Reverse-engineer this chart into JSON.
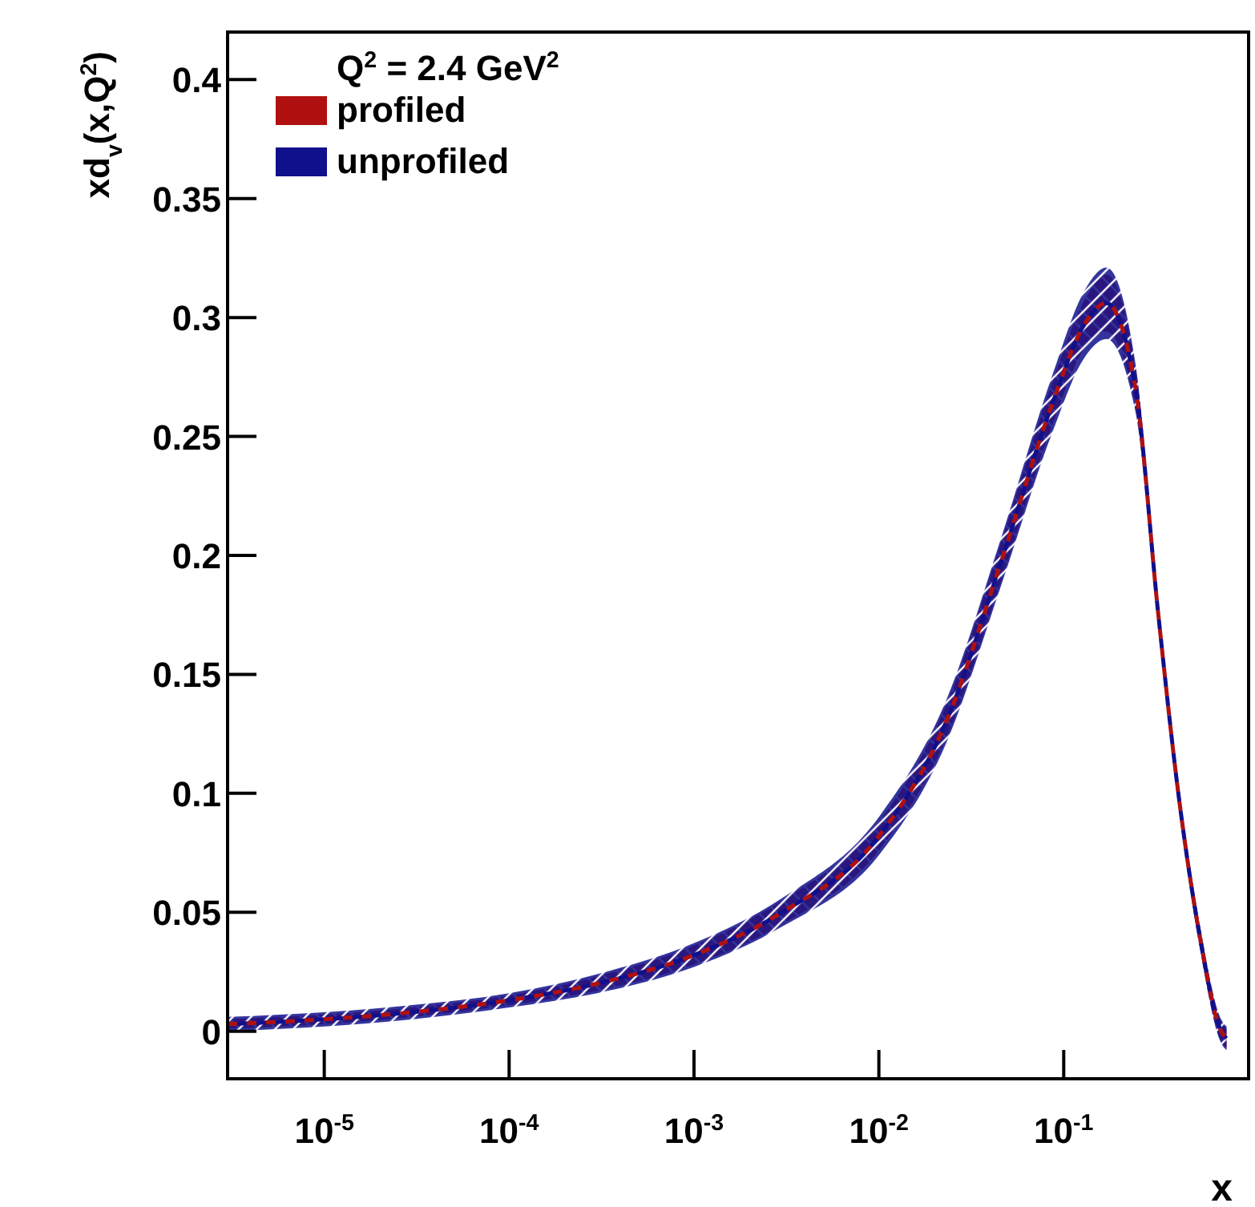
{
  "chart_data": {
    "type": "line",
    "xlabel": "x",
    "ylabel": "xd$_{v}$(x,Q$^{2}$)",
    "annotations": [
      "Q$^{2}$ = 2.4 GeV$^{2}$"
    ],
    "log": "x",
    "legend": "top left",
    "grid": false,
    "line_style": "dashed",
    "x": [
      3e-06,
      1e-05,
      3e-05,
      0.0001,
      0.0003,
      0.001,
      0.003,
      0.01,
      0.0234,
      0.0457,
      0.087,
      0.129,
      0.17,
      0.245,
      0.325,
      0.42,
      0.55,
      0.71,
      0.76
    ],
    "xlim": [
      3e-06,
      1
    ],
    "ylim": [
      -0.02,
      0.42
    ],
    "xticks": [
      {
        "value": 1e-05,
        "label": "10$^{-5}$"
      },
      {
        "value": 0.0001,
        "label": "10$^{-4}$"
      },
      {
        "value": 0.001,
        "label": "10$^{-3}$"
      },
      {
        "value": 0.01,
        "label": "10$^{-2}$"
      },
      {
        "value": 0.1,
        "label": "10$^{-1}$"
      }
    ],
    "yticks": [
      0,
      0.05,
      0.1,
      0.15,
      0.2,
      0.25,
      0.3,
      0.35,
      0.4
    ],
    "series": [
      {
        "name": "profiled",
        "color": "#b01010",
        "values": [
          0.003,
          0.005,
          0.008,
          0.013,
          0.02,
          0.032,
          0.05,
          0.082,
          0.131,
          0.197,
          0.264,
          0.297,
          0.306,
          0.27,
          0.175,
          0.098,
          0.038,
          0,
          -0.003
        ],
        "lower": [
          0.001,
          0.003,
          0.006,
          0.011,
          0.017,
          0.028,
          0.045,
          0.076,
          0.124,
          0.189,
          0.255,
          0.287,
          0.294,
          0.262,
          0.17,
          0.094,
          0.034,
          -0.004,
          -0.007
        ],
        "upper": [
          0.005,
          0.007,
          0.01,
          0.015,
          0.023,
          0.036,
          0.055,
          0.088,
          0.138,
          0.205,
          0.273,
          0.307,
          0.318,
          0.278,
          0.18,
          0.102,
          0.042,
          0.004,
          0.001
        ]
      },
      {
        "name": "unprofiled",
        "color": "#10108c",
        "values": [
          0.003,
          0.005,
          0.008,
          0.013,
          0.02,
          0.032,
          0.05,
          0.082,
          0.131,
          0.197,
          0.264,
          0.297,
          0.306,
          0.27,
          0.175,
          0.098,
          0.038,
          0,
          -0.003
        ],
        "lower": [
          0,
          0.002,
          0.005,
          0.01,
          0.016,
          0.027,
          0.044,
          0.074,
          0.122,
          0.187,
          0.252,
          0.283,
          0.291,
          0.26,
          0.169,
          0.093,
          0.033,
          -0.005,
          -0.008
        ],
        "upper": [
          0.006,
          0.008,
          0.011,
          0.016,
          0.024,
          0.037,
          0.056,
          0.09,
          0.14,
          0.207,
          0.276,
          0.311,
          0.321,
          0.28,
          0.181,
          0.103,
          0.043,
          0.005,
          0.002
        ]
      }
    ]
  }
}
